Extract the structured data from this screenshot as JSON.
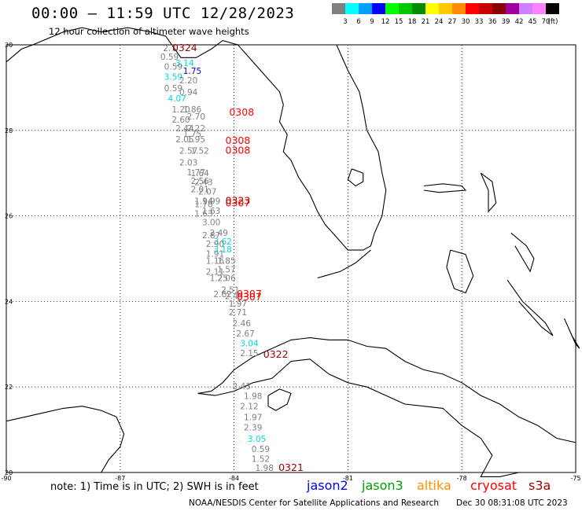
{
  "header": {
    "title": "00:00 – 11:59 UTC 12/28/2023",
    "subtitle": "12 hour collection of altimeter wave heights"
  },
  "colorbar": {
    "unit_label": "(ft)",
    "levels": [
      {
        "label": "3",
        "color": "#808080"
      },
      {
        "label": "6",
        "color": "#00ffff"
      },
      {
        "label": "9",
        "color": "#00a0ff"
      },
      {
        "label": "12",
        "color": "#0000ff"
      },
      {
        "label": "15",
        "color": "#00ff00"
      },
      {
        "label": "18",
        "color": "#00c800"
      },
      {
        "label": "21",
        "color": "#008c00"
      },
      {
        "label": "24",
        "color": "#ffff00"
      },
      {
        "label": "27",
        "color": "#ffc800"
      },
      {
        "label": "30",
        "color": "#ff8c00"
      },
      {
        "label": "33",
        "color": "#ff0000"
      },
      {
        "label": "36",
        "color": "#c80000"
      },
      {
        "label": "39",
        "color": "#8c0000"
      },
      {
        "label": "42",
        "color": "#a000a0"
      },
      {
        "label": "45",
        "color": "#d080ff"
      },
      {
        "label": "70",
        "color": "#ff80ff"
      },
      {
        "label": "",
        "color": "#000000"
      }
    ]
  },
  "map": {
    "lon_range": [
      -90,
      -75
    ],
    "lat_range": [
      20,
      30
    ],
    "lon_ticks": [
      "-90",
      "-87",
      "-84",
      "-81",
      "-78",
      "-75"
    ],
    "lat_ticks": [
      "30",
      "28",
      "26",
      "24",
      "22",
      "20"
    ],
    "grid_style": "dotted",
    "coastline_color": "#000000"
  },
  "track_labels": [
    {
      "text": "2.7",
      "lon": -85.7,
      "lat": 29.85,
      "color": "#808080"
    },
    {
      "text": "0.59",
      "lon": -85.7,
      "lat": 29.65,
      "color": "#808080"
    },
    {
      "text": "3.14",
      "lon": -85.3,
      "lat": 29.5,
      "color": "#00d8e0"
    },
    {
      "text": "0.59",
      "lon": -85.6,
      "lat": 29.42,
      "color": "#808080"
    },
    {
      "text": "1.75",
      "lon": -85.1,
      "lat": 29.32,
      "color": "#0000c0"
    },
    {
      "text": "3.59",
      "lon": -85.6,
      "lat": 29.18,
      "color": "#00d8e0"
    },
    {
      "text": "2.20",
      "lon": -85.2,
      "lat": 29.1,
      "color": "#808080"
    },
    {
      "text": "0.59",
      "lon": -85.6,
      "lat": 28.92,
      "color": "#808080"
    },
    {
      "text": "0.94",
      "lon": -85.2,
      "lat": 28.82,
      "color": "#808080"
    },
    {
      "text": "4.07",
      "lon": -85.5,
      "lat": 28.68,
      "color": "#00d8e0"
    },
    {
      "text": "1.20",
      "lon": -85.4,
      "lat": 28.42,
      "color": "#808080"
    },
    {
      "text": "1.86",
      "lon": -85.1,
      "lat": 28.42,
      "color": "#808080"
    },
    {
      "text": "2.70",
      "lon": -85.0,
      "lat": 28.25,
      "color": "#808080"
    },
    {
      "text": "2.60",
      "lon": -85.4,
      "lat": 28.18,
      "color": "#808080"
    },
    {
      "text": "2.44",
      "lon": -85.3,
      "lat": 27.98,
      "color": "#808080"
    },
    {
      "text": "2.22",
      "lon": -85.0,
      "lat": 27.98,
      "color": "#808080"
    },
    {
      "text": "1.75",
      "lon": -85.1,
      "lat": 27.85,
      "color": "#808080"
    },
    {
      "text": "2.05",
      "lon": -85.3,
      "lat": 27.72,
      "color": "#808080"
    },
    {
      "text": "1.95",
      "lon": -85.0,
      "lat": 27.72,
      "color": "#808080"
    },
    {
      "text": "2.57",
      "lon": -85.2,
      "lat": 27.45,
      "color": "#808080"
    },
    {
      "text": "1.52",
      "lon": -84.9,
      "lat": 27.45,
      "color": "#808080"
    },
    {
      "text": "2.03",
      "lon": -85.2,
      "lat": 27.18,
      "color": "#808080"
    },
    {
      "text": "1.77",
      "lon": -85.0,
      "lat": 26.95,
      "color": "#808080"
    },
    {
      "text": "1.64",
      "lon": -84.9,
      "lat": 26.93,
      "color": "#808080"
    },
    {
      "text": "2.56",
      "lon": -84.9,
      "lat": 26.75,
      "color": "#808080"
    },
    {
      "text": "2.43",
      "lon": -84.8,
      "lat": 26.72,
      "color": "#808080"
    },
    {
      "text": "2.01",
      "lon": -84.9,
      "lat": 26.55,
      "color": "#808080"
    },
    {
      "text": "2.07",
      "lon": -84.7,
      "lat": 26.5,
      "color": "#808080"
    },
    {
      "text": "1.94",
      "lon": -84.8,
      "lat": 26.28,
      "color": "#808080"
    },
    {
      "text": "1.99",
      "lon": -84.6,
      "lat": 26.28,
      "color": "#808080"
    },
    {
      "text": "1.78",
      "lon": -84.8,
      "lat": 26.2,
      "color": "#808080"
    },
    {
      "text": "1.63",
      "lon": -84.6,
      "lat": 26.05,
      "color": "#808080"
    },
    {
      "text": "1.63",
      "lon": -84.8,
      "lat": 25.98,
      "color": "#808080"
    },
    {
      "text": "3.00",
      "lon": -84.6,
      "lat": 25.78,
      "color": "#808080"
    },
    {
      "text": "2.49",
      "lon": -84.4,
      "lat": 25.53,
      "color": "#808080"
    },
    {
      "text": "2.87",
      "lon": -84.6,
      "lat": 25.48,
      "color": "#808080"
    },
    {
      "text": "3.62",
      "lon": -84.3,
      "lat": 25.33,
      "color": "#00d8e0"
    },
    {
      "text": "2.90",
      "lon": -84.5,
      "lat": 25.28,
      "color": "#808080"
    },
    {
      "text": "3.18",
      "lon": -84.3,
      "lat": 25.15,
      "color": "#00d8e0"
    },
    {
      "text": "1.91",
      "lon": -84.5,
      "lat": 25.05,
      "color": "#808080"
    },
    {
      "text": "1.16",
      "lon": -84.5,
      "lat": 24.88,
      "color": "#808080"
    },
    {
      "text": "1.85",
      "lon": -84.2,
      "lat": 24.88,
      "color": "#808080"
    },
    {
      "text": "1.57",
      "lon": -84.2,
      "lat": 24.68,
      "color": "#808080"
    },
    {
      "text": "2.11",
      "lon": -84.5,
      "lat": 24.62,
      "color": "#808080"
    },
    {
      "text": "1.25",
      "lon": -84.4,
      "lat": 24.48,
      "color": "#808080"
    },
    {
      "text": "2.06",
      "lon": -84.2,
      "lat": 24.48,
      "color": "#808080"
    },
    {
      "text": "2.51",
      "lon": -84.1,
      "lat": 24.2,
      "color": "#808080"
    },
    {
      "text": "2.62",
      "lon": -84.3,
      "lat": 24.1,
      "color": "#808080"
    },
    {
      "text": "2.45",
      "lon": -84.0,
      "lat": 24.05,
      "color": "#808080"
    },
    {
      "text": "1.97",
      "lon": -83.9,
      "lat": 23.88,
      "color": "#808080"
    },
    {
      "text": "2.71",
      "lon": -83.9,
      "lat": 23.68,
      "color": "#808080"
    },
    {
      "text": "2.46",
      "lon": -83.8,
      "lat": 23.42,
      "color": "#808080"
    },
    {
      "text": "2.67",
      "lon": -83.7,
      "lat": 23.18,
      "color": "#808080"
    },
    {
      "text": "3.04",
      "lon": -83.6,
      "lat": 22.95,
      "color": "#00d8e0"
    },
    {
      "text": "2.15",
      "lon": -83.6,
      "lat": 22.72,
      "color": "#808080"
    },
    {
      "text": "2.43",
      "lon": -83.8,
      "lat": 21.95,
      "color": "#808080"
    },
    {
      "text": "1.98",
      "lon": -83.5,
      "lat": 21.72,
      "color": "#808080"
    },
    {
      "text": "2.12",
      "lon": -83.6,
      "lat": 21.48,
      "color": "#808080"
    },
    {
      "text": "1.97",
      "lon": -83.5,
      "lat": 21.22,
      "color": "#808080"
    },
    {
      "text": "2.39",
      "lon": -83.5,
      "lat": 20.98,
      "color": "#808080"
    },
    {
      "text": "3.05",
      "lon": -83.4,
      "lat": 20.72,
      "color": "#00d8e0"
    },
    {
      "text": "0.59",
      "lon": -83.3,
      "lat": 20.48,
      "color": "#808080"
    },
    {
      "text": "1.52",
      "lon": -83.3,
      "lat": 20.25,
      "color": "#808080"
    },
    {
      "text": "1.98",
      "lon": -83.2,
      "lat": 20.04,
      "color": "#808080"
    }
  ],
  "pass_labels": [
    {
      "text": "0324",
      "lon": -85.3,
      "lat": 29.85,
      "color": "#a00000"
    },
    {
      "text": "0308",
      "lon": -83.8,
      "lat": 28.35,
      "color": "#ff0000"
    },
    {
      "text": "0308",
      "lon": -83.9,
      "lat": 27.68,
      "color": "#ff0000"
    },
    {
      "text": "0308",
      "lon": -83.9,
      "lat": 27.45,
      "color": "#ff0000"
    },
    {
      "text": "0323",
      "lon": -83.9,
      "lat": 26.28,
      "color": "#a00000"
    },
    {
      "text": "0307",
      "lon": -83.9,
      "lat": 26.22,
      "color": "#ff0000"
    },
    {
      "text": "0307",
      "lon": -83.6,
      "lat": 24.1,
      "color": "#ff0000"
    },
    {
      "text": "0307",
      "lon": -83.6,
      "lat": 24.03,
      "color": "#ff0000"
    },
    {
      "text": "0322",
      "lon": -82.9,
      "lat": 22.68,
      "color": "#a00000"
    },
    {
      "text": "0321",
      "lon": -82.5,
      "lat": 20.04,
      "color": "#a00000"
    }
  ],
  "footer": {
    "note": "note: 1) Time is in UTC; 2) SWH is in feet",
    "satellites": [
      {
        "label": "jason2",
        "color": "#0000ff"
      },
      {
        "label": "jason3",
        "color": "#00a000"
      },
      {
        "label": "altika",
        "color": "#ff9000"
      },
      {
        "label": "cryosat",
        "color": "#ff0000"
      },
      {
        "label": "s3a",
        "color": "#a00000"
      }
    ],
    "credit": "NOAA/NESDIS Center for Satellite Applications and Research",
    "timestamp": "Dec 30 08:31:08 UTC 2023"
  }
}
